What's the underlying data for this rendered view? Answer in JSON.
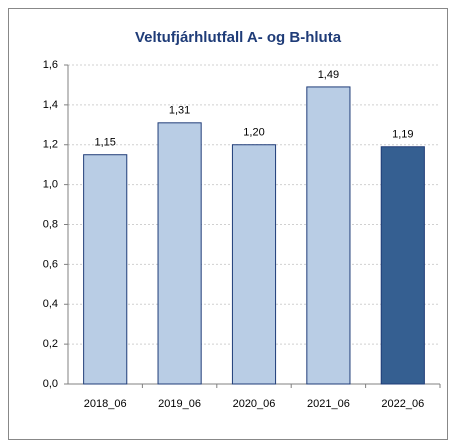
{
  "chart_data": {
    "type": "bar",
    "title": "Veltufjárhlutfall A- og B-hluta",
    "categories": [
      "2018_06",
      "2019_06",
      "2020_06",
      "2021_06",
      "2022_06"
    ],
    "values": [
      1.15,
      1.31,
      1.2,
      1.49,
      1.19
    ],
    "value_labels": [
      "1,15",
      "1,31",
      "1,20",
      "1,49",
      "1,19"
    ],
    "colors": [
      "#b9cde5",
      "#b9cde5",
      "#b9cde5",
      "#b9cde5",
      "#355f91"
    ],
    "ylim": [
      0,
      1.6
    ],
    "yticks": [
      {
        "value": 0,
        "label": "0,0"
      },
      {
        "value": 0.2,
        "label": "0,2"
      },
      {
        "value": 0.4,
        "label": "0,4"
      },
      {
        "value": 0.6,
        "label": "0,6"
      },
      {
        "value": 0.8,
        "label": "0,8"
      },
      {
        "value": 1.0,
        "label": "1,0"
      },
      {
        "value": 1.2,
        "label": "1,2"
      },
      {
        "value": 1.4,
        "label": "1,4"
      },
      {
        "value": 1.6,
        "label": "1,6"
      }
    ],
    "grid": true
  }
}
